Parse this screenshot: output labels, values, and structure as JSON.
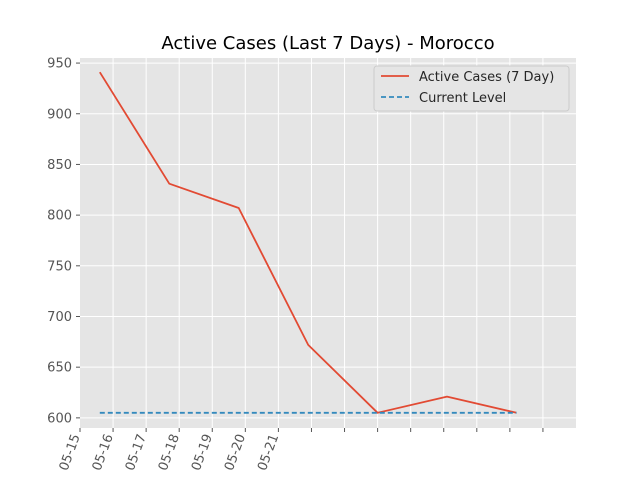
{
  "chart_data": {
    "type": "line",
    "title": "Active Cases (Last 7 Days) - Morocco",
    "xlabel": "",
    "ylabel": "",
    "ylim": [
      590,
      955
    ],
    "y_ticks": [
      600,
      650,
      700,
      750,
      800,
      850,
      900,
      950
    ],
    "x_tick_labels": [
      "05-15",
      "05-16",
      "05-17",
      "05-18",
      "05-19",
      "05-20",
      "05-21",
      "",
      "",
      "",
      "",
      "",
      "",
      "",
      ""
    ],
    "grid": true,
    "legend_position": "top-right",
    "series": [
      {
        "name": "Active Cases (7 Day)",
        "color": "#E24A33",
        "style": "solid",
        "x": [
          0.6,
          2.7,
          4.8,
          6.9,
          9.0,
          11.1,
          13.2
        ],
        "values": [
          941,
          831,
          807,
          672,
          605,
          621,
          605
        ]
      },
      {
        "name": "Current Level",
        "color": "#348ABD",
        "style": "dashed",
        "x": [
          0.6,
          13.2
        ],
        "values": [
          605,
          605
        ]
      }
    ]
  }
}
